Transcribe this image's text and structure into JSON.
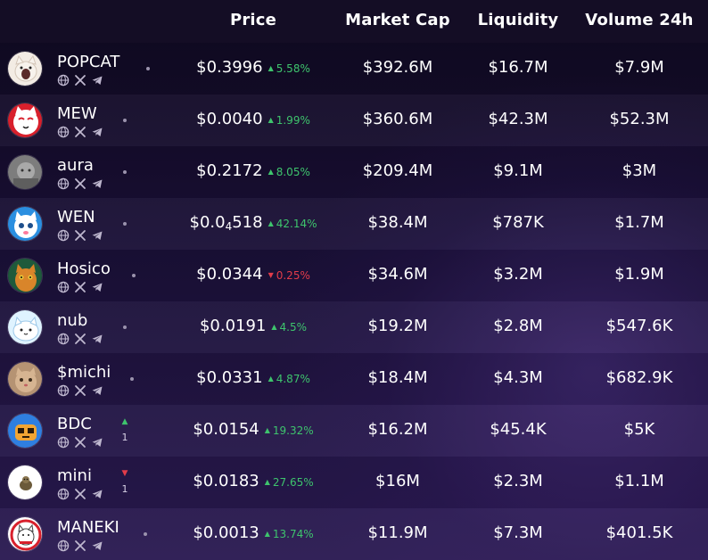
{
  "header": {
    "price": "Price",
    "market_cap": "Market Cap",
    "liquidity": "Liquidity",
    "volume_24h": "Volume 24h"
  },
  "colors": {
    "up": "#3ec46d",
    "down": "#e23c4a",
    "background": "#1b1138"
  },
  "rows": [
    {
      "name": "POPCAT",
      "avatar_icon": "popcat-cat-avatar-icon",
      "price": "$0.3996",
      "change": "5.58%",
      "direction": "up",
      "market_cap": "$392.6M",
      "liquidity": "$16.7M",
      "volume": "$7.9M",
      "vote": null
    },
    {
      "name": "MEW",
      "avatar_icon": "mew-cat-avatar-icon",
      "price": "$0.0040",
      "change": "1.99%",
      "direction": "up",
      "market_cap": "$360.6M",
      "liquidity": "$42.3M",
      "volume": "$52.3M",
      "vote": null
    },
    {
      "name": "aura",
      "avatar_icon": "aura-avatar-icon",
      "price": "$0.2172",
      "change": "8.05%",
      "direction": "up",
      "market_cap": "$209.4M",
      "liquidity": "$9.1M",
      "volume": "$3M",
      "vote": null
    },
    {
      "name": "WEN",
      "avatar_icon": "wen-cat-avatar-icon",
      "price_prefix": "$0.0",
      "price_sub": "4",
      "price_suffix": "518",
      "change": "42.14%",
      "direction": "up",
      "market_cap": "$38.4M",
      "liquidity": "$787K",
      "volume": "$1.7M",
      "vote": null
    },
    {
      "name": "Hosico",
      "avatar_icon": "hosico-cat-avatar-icon",
      "price": "$0.0344",
      "change": "0.25%",
      "direction": "down",
      "market_cap": "$34.6M",
      "liquidity": "$3.2M",
      "volume": "$1.9M",
      "vote": null
    },
    {
      "name": "nub",
      "avatar_icon": "nub-avatar-icon",
      "price": "$0.0191",
      "change": "4.5%",
      "direction": "up",
      "market_cap": "$19.2M",
      "liquidity": "$2.8M",
      "volume": "$547.6K",
      "vote": null
    },
    {
      "name": "$michi",
      "avatar_icon": "michi-cat-avatar-icon",
      "price": "$0.0331",
      "change": "4.87%",
      "direction": "up",
      "market_cap": "$18.4M",
      "liquidity": "$4.3M",
      "volume": "$682.9K",
      "vote": null
    },
    {
      "name": "BDC",
      "avatar_icon": "bdc-avatar-icon",
      "price": "$0.0154",
      "change": "19.32%",
      "direction": "up",
      "market_cap": "$16.2M",
      "liquidity": "$45.4K",
      "volume": "$5K",
      "vote": {
        "direction": "up",
        "count": "1"
      }
    },
    {
      "name": "mini",
      "avatar_icon": "mini-avatar-icon",
      "price": "$0.0183",
      "change": "27.65%",
      "direction": "up",
      "market_cap": "$16M",
      "liquidity": "$2.3M",
      "volume": "$1.1M",
      "vote": {
        "direction": "down",
        "count": "1"
      }
    },
    {
      "name": "MANEKI",
      "avatar_icon": "maneki-cat-avatar-icon",
      "price": "$0.0013",
      "change": "13.74%",
      "direction": "up",
      "market_cap": "$11.9M",
      "liquidity": "$7.3M",
      "volume": "$401.5K",
      "vote": null
    }
  ]
}
